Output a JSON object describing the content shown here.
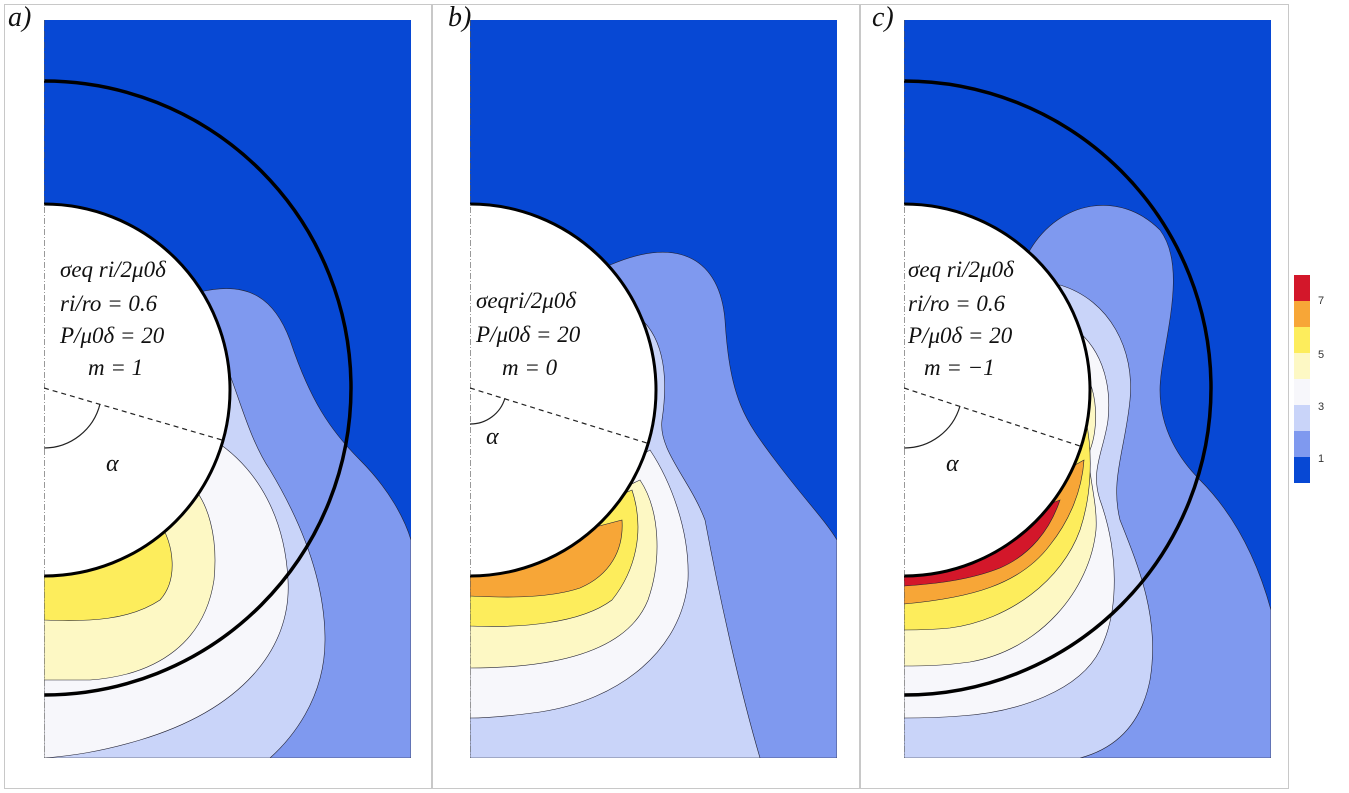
{
  "panels": [
    {
      "label": "a)",
      "lines": [
        "σeq ri/2μ0δ",
        "ri/ro = 0.6",
        "P/μ0δ = 20",
        "m = 1"
      ],
      "alpha": "α"
    },
    {
      "label": "b)",
      "lines": [
        "σeqri/2μ0δ",
        "P/μ0δ = 20",
        "m = 0"
      ],
      "alpha": "α"
    },
    {
      "label": "c)",
      "lines": [
        "σeq ri/2μ0δ",
        "ri/ro = 0.6",
        "P/μ0δ = 20",
        "m = −1"
      ],
      "alpha": "α"
    }
  ],
  "colorbar": {
    "colors": [
      "#d3172a",
      "#f7a637",
      "#fded5c",
      "#fdf8c4",
      "#f7f7fb",
      "#c9d4f9",
      "#7f99ef",
      "#0748d4"
    ],
    "ticks": [
      "7",
      "5",
      "3",
      "1"
    ]
  }
}
